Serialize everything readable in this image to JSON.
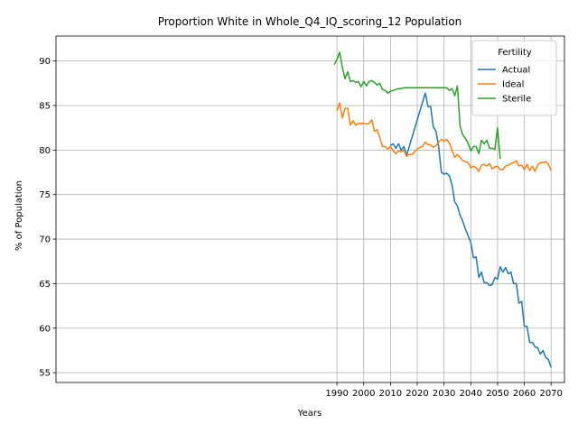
{
  "chart_data": {
    "type": "line",
    "title": "Proportion White in Whole_Q4_IQ_scoring_12 Population",
    "xlabel": "Years",
    "ylabel": "% of Population",
    "xlim": [
      1885,
      2075
    ],
    "ylim": [
      53.9,
      92.8
    ],
    "xticks": [
      1990,
      2000,
      2010,
      2020,
      2030,
      2040,
      2050,
      2060,
      2070
    ],
    "yticks": [
      55,
      60,
      65,
      70,
      75,
      80,
      85,
      90
    ],
    "grid": true,
    "legend": {
      "title": "Fertility",
      "placement": "top-right"
    },
    "series": [
      {
        "name": "Actual",
        "color": "#1f77b4",
        "x": [
          2010,
          2011,
          2012,
          2013,
          2014,
          2015,
          2016,
          2023,
          2024,
          2025,
          2026,
          2027,
          2028,
          2029,
          2030,
          2031,
          2032,
          2033,
          2034,
          2035,
          2036,
          2037,
          2038,
          2039,
          2040,
          2041,
          2042,
          2043,
          2044,
          2045,
          2046,
          2047,
          2048,
          2049,
          2050,
          2051,
          2052,
          2053,
          2054,
          2055,
          2056,
          2057,
          2058,
          2059,
          2060,
          2061,
          2062,
          2063,
          2064,
          2065,
          2066,
          2067,
          2068,
          2069,
          2070
        ],
        "values": [
          80.5,
          80.7,
          80.2,
          80.7,
          80.0,
          80.4,
          79.4,
          86.4,
          84.9,
          84.9,
          82.6,
          82.1,
          80.4,
          77.5,
          77.3,
          77.4,
          77.1,
          76.1,
          74.2,
          73.7,
          72.7,
          72.0,
          71.1,
          70.4,
          69.6,
          67.9,
          68.0,
          65.7,
          66.3,
          65.1,
          65.1,
          64.8,
          64.9,
          65.7,
          65.5,
          66.9,
          66.3,
          66.8,
          66.1,
          66.3,
          65.0,
          65.0,
          62.8,
          63.0,
          60.2,
          60.2,
          58.4,
          58.4,
          57.9,
          57.8,
          57.1,
          57.5,
          56.7,
          56.5,
          55.6
        ]
      },
      {
        "name": "Ideal",
        "color": "#ff7f0e",
        "x": [
          1990,
          1991,
          1992,
          1993,
          1994,
          1995,
          1996,
          1997,
          1998,
          1999,
          2000,
          2001,
          2002,
          2003,
          2004,
          2005,
          2006,
          2007,
          2008,
          2009,
          2010,
          2011,
          2012,
          2013,
          2014,
          2015,
          2016,
          2017,
          2018,
          2019,
          2020,
          2021,
          2022,
          2023,
          2024,
          2025,
          2026,
          2027,
          2028,
          2029,
          2030,
          2031,
          2032,
          2033,
          2034,
          2035,
          2036,
          2037,
          2038,
          2039,
          2040,
          2041,
          2042,
          2043,
          2044,
          2045,
          2046,
          2047,
          2048,
          2049,
          2050,
          2051,
          2052,
          2053,
          2054,
          2055,
          2056,
          2057,
          2058,
          2059,
          2060,
          2061,
          2062,
          2063,
          2064,
          2065,
          2066,
          2067,
          2068,
          2069,
          2070
        ],
        "values": [
          84.4,
          85.3,
          83.6,
          84.7,
          84.7,
          82.8,
          83.3,
          82.8,
          83.0,
          83.0,
          83.0,
          82.9,
          83.0,
          83.4,
          82.1,
          82.3,
          81.4,
          80.4,
          80.4,
          80.1,
          80.4,
          79.9,
          79.6,
          79.9,
          79.8,
          80.0,
          79.3,
          79.5,
          79.5,
          79.8,
          80.1,
          80.3,
          80.4,
          80.9,
          80.6,
          80.6,
          80.3,
          80.5,
          80.9,
          81.2,
          81.0,
          81.2,
          80.8,
          80.0,
          79.2,
          79.5,
          79.2,
          78.8,
          78.7,
          78.6,
          78.0,
          78.2,
          78.0,
          77.6,
          78.3,
          78.4,
          78.2,
          78.5,
          77.9,
          78.1,
          78.2,
          77.8,
          77.8,
          78.2,
          78.3,
          78.5,
          78.6,
          78.8,
          78.2,
          78.3,
          77.8,
          78.4,
          77.7,
          78.2,
          77.6,
          78.3,
          78.6,
          78.6,
          78.7,
          78.4,
          77.7
        ]
      },
      {
        "name": "Sterile",
        "color": "#2ca02c",
        "x": [
          1989,
          1990,
          1991,
          1992,
          1993,
          1994,
          1995,
          1996,
          1997,
          1998,
          1999,
          2000,
          2001,
          2002,
          2003,
          2004,
          2005,
          2006,
          2007,
          2008,
          2009,
          2010,
          2011,
          2012,
          2013,
          2014,
          2015,
          2016,
          2017,
          2018,
          2019,
          2020,
          2021,
          2022,
          2023,
          2024,
          2025,
          2026,
          2027,
          2028,
          2029,
          2030,
          2031,
          2032,
          2033,
          2034,
          2035,
          2036,
          2037,
          2038,
          2039,
          2040,
          2041,
          2042,
          2043,
          2044,
          2045,
          2046,
          2047,
          2048,
          2049,
          2050,
          2051
        ],
        "values": [
          89.6,
          90.2,
          91.0,
          89.3,
          88.0,
          88.8,
          87.7,
          87.8,
          87.6,
          87.7,
          87.1,
          87.7,
          87.2,
          87.7,
          87.8,
          87.6,
          87.3,
          87.5,
          86.8,
          86.7,
          86.4,
          86.6,
          86.7,
          86.8,
          86.9,
          86.9,
          87.0,
          87.0,
          87.0,
          87.0,
          87.0,
          87.0,
          87.0,
          87.0,
          87.0,
          87.0,
          87.0,
          87.0,
          87.0,
          87.0,
          87.0,
          87.0,
          87.0,
          86.7,
          86.9,
          86.1,
          87.2,
          82.7,
          81.7,
          81.3,
          80.8,
          79.9,
          80.4,
          80.4,
          79.6,
          81.1,
          80.7,
          81.1,
          80.2,
          80.2,
          80.1,
          82.5,
          79.0
        ]
      }
    ]
  }
}
